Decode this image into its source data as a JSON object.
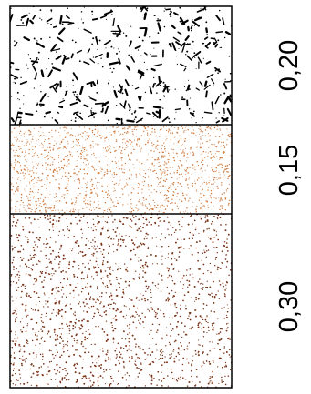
{
  "layers": [
    {
      "key": "top",
      "pattern": "gravel-dashes",
      "color": "#000000",
      "thickness_label": "0,20"
    },
    {
      "key": "middle",
      "pattern": "fine-dots",
      "color": "#d07a3c",
      "thickness_label": "0,15"
    },
    {
      "key": "bottom",
      "pattern": "coarse-dots",
      "color": "#7a3418",
      "thickness_label": "0,30"
    }
  ]
}
